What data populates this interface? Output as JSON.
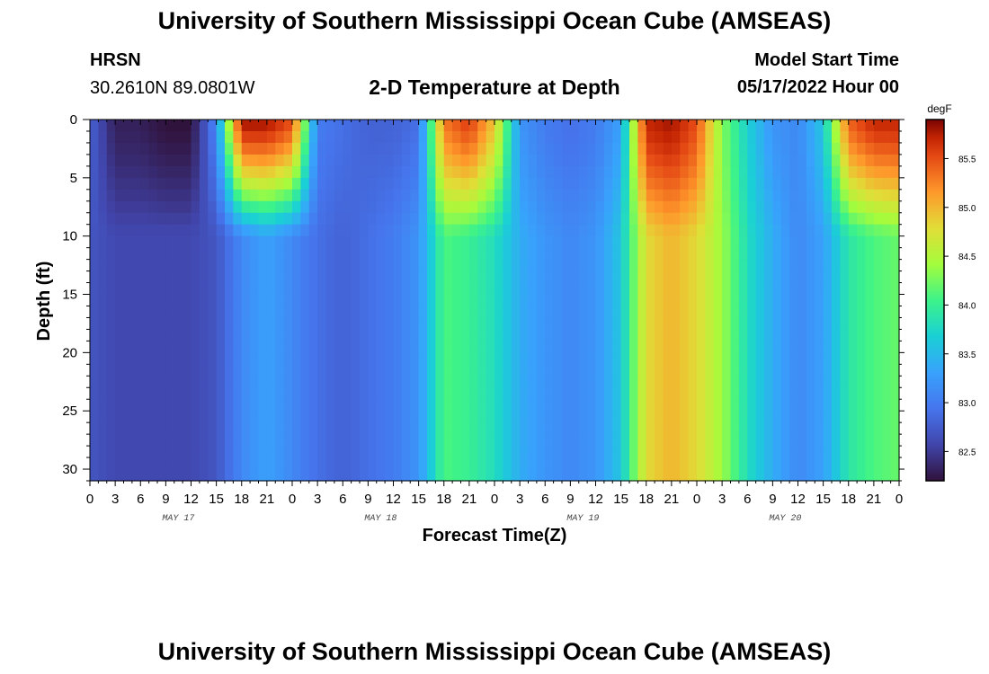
{
  "page": {
    "title_top": "University of Southern Mississippi Ocean Cube (AMSEAS)",
    "title_bottom": "University of Southern Mississippi Ocean Cube (AMSEAS)",
    "station": "HRSN",
    "coords": "30.2610N  89.0801W",
    "subtitle": "2-D Temperature at Depth",
    "model_label": "Model Start Time",
    "model_time": "05/17/2022 Hour 00"
  },
  "chart_data": {
    "type": "heatmap",
    "title": "2-D Temperature at Depth",
    "xlabel": "Forecast Time(Z)",
    "ylabel": "Depth (ft)",
    "x_unit": "hours since 05/17/2022 00Z",
    "xlim": [
      0,
      96
    ],
    "ylim": [
      0,
      31
    ],
    "y_inverted": true,
    "x_tick_labels": [
      "0",
      "3",
      "6",
      "9",
      "12",
      "15",
      "18",
      "21",
      "0",
      "3",
      "6",
      "9",
      "12",
      "15",
      "18",
      "21",
      "0",
      "3",
      "6",
      "9",
      "12",
      "15",
      "18",
      "21",
      "0",
      "3",
      "6",
      "9",
      "12",
      "15",
      "18",
      "21",
      "0"
    ],
    "y_ticks": [
      0,
      5,
      10,
      15,
      20,
      25,
      30
    ],
    "y_tick_labels": [
      "0",
      "5",
      "10",
      "15",
      "20",
      "25",
      "30"
    ],
    "day_labels": [
      "MAY 17",
      "MAY 18",
      "MAY 19",
      "MAY 20"
    ],
    "colorbar": {
      "unit": "degF",
      "range": [
        82.2,
        85.9
      ],
      "ticks": [
        82.5,
        83.0,
        83.5,
        84.0,
        84.5,
        85.0,
        85.5
      ],
      "tick_labels": [
        "82.5",
        "83.0",
        "83.5",
        "84.0",
        "84.5",
        "85.0",
        "85.5"
      ]
    },
    "time_hours": [
      0,
      3,
      6,
      9,
      12,
      15,
      18,
      21,
      24,
      27,
      30,
      33,
      36,
      39,
      42,
      45,
      48,
      51,
      54,
      57,
      60,
      63,
      66,
      69,
      72,
      75,
      78,
      81,
      84,
      87,
      90,
      93,
      96
    ],
    "surface_temp_degF": [
      82.8,
      82.3,
      82.3,
      82.2,
      82.2,
      83.1,
      85.8,
      85.8,
      85.5,
      83.0,
      82.9,
      82.8,
      82.8,
      82.9,
      85.3,
      85.6,
      84.9,
      83.2,
      83.0,
      82.9,
      83.0,
      83.3,
      85.7,
      85.8,
      85.5,
      84.3,
      83.7,
      83.2,
      83.1,
      83.6,
      85.4,
      85.7,
      85.7
    ],
    "bottom_temp_degF": [
      82.7,
      82.6,
      82.6,
      82.6,
      82.6,
      82.7,
      83.1,
      83.3,
      83.1,
      82.9,
      82.8,
      82.9,
      83.0,
      83.2,
      84.1,
      84.0,
      83.8,
      83.4,
      83.2,
      83.1,
      83.2,
      83.6,
      84.8,
      85.0,
      84.8,
      84.4,
      83.8,
      83.4,
      83.1,
      83.3,
      83.9,
      84.1,
      84.2
    ]
  }
}
